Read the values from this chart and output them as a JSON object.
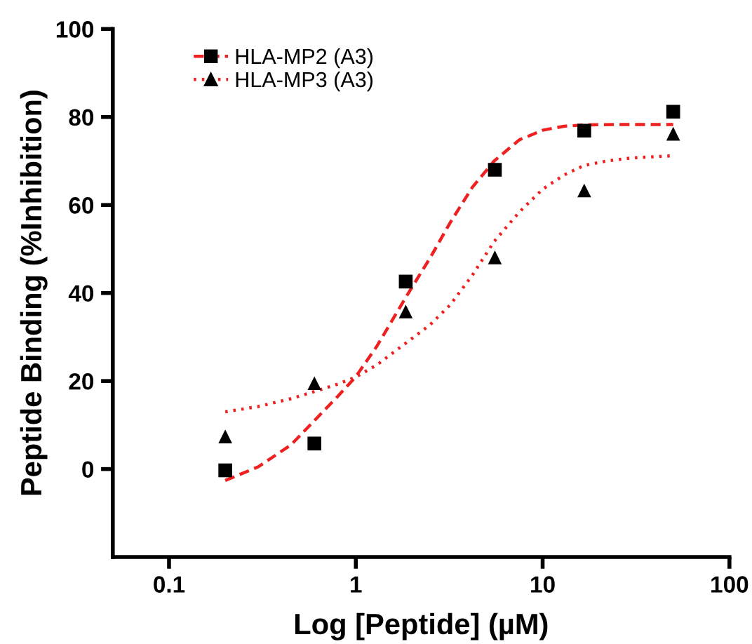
{
  "chart_data": {
    "type": "scatter",
    "xlabel": "Log [Peptide] (µM)",
    "ylabel": "Peptide Binding (%Inhibition)",
    "log": "x",
    "xlim": [
      0.05,
      100
    ],
    "xticks": [
      0.1,
      1,
      10,
      100
    ],
    "ylim": [
      -20,
      100
    ],
    "yticks": [
      0,
      20,
      40,
      60,
      80,
      100
    ],
    "grid": false,
    "legend": "top left",
    "series": [
      {
        "name": "HLA-MP2 (A3)",
        "marker": "square",
        "color": "#000000",
        "x": [
          0.2,
          0.6,
          1.85,
          5.55,
          16.7,
          50
        ],
        "values": [
          -0.3,
          5.8,
          42.6,
          68.0,
          76.9,
          81.2
        ]
      },
      {
        "type": "line",
        "line_style": "dashed",
        "marker": "none",
        "color": "#ee2020",
        "x": [
          0.2,
          0.3,
          0.45,
          0.6,
          0.8,
          1,
          1.3,
          1.85,
          2.5,
          3.2,
          4.2,
          5.5,
          7.5,
          10,
          13,
          16.7,
          25,
          50
        ],
        "values": [
          -2.6,
          0.5,
          5.5,
          11,
          16.5,
          21,
          28,
          39,
          48,
          56,
          64,
          70,
          74.8,
          77,
          77.9,
          78.2,
          78.3,
          78.3
        ]
      },
      {
        "name": "HLA-MP3 (A3)",
        "marker": "triangle",
        "color": "#000000",
        "x": [
          0.2,
          0.6,
          1.85,
          5.55,
          16.7,
          50
        ],
        "values": [
          7.4,
          19.5,
          35.8,
          48.1,
          63.3,
          76.2
        ]
      },
      {
        "type": "line",
        "line_style": "dotted",
        "marker": "none",
        "color": "#ee2020",
        "x": [
          0.2,
          0.3,
          0.45,
          0.6,
          0.8,
          1,
          1.3,
          1.85,
          2.5,
          3.2,
          4.2,
          5.5,
          7.5,
          10,
          13,
          16.7,
          22,
          30,
          50
        ],
        "values": [
          13,
          14.2,
          16,
          17.6,
          19.3,
          20.9,
          23.7,
          28.6,
          32.8,
          37.3,
          44,
          51.7,
          58.4,
          63.6,
          66.8,
          69,
          70,
          70.7,
          71.2
        ]
      }
    ]
  }
}
